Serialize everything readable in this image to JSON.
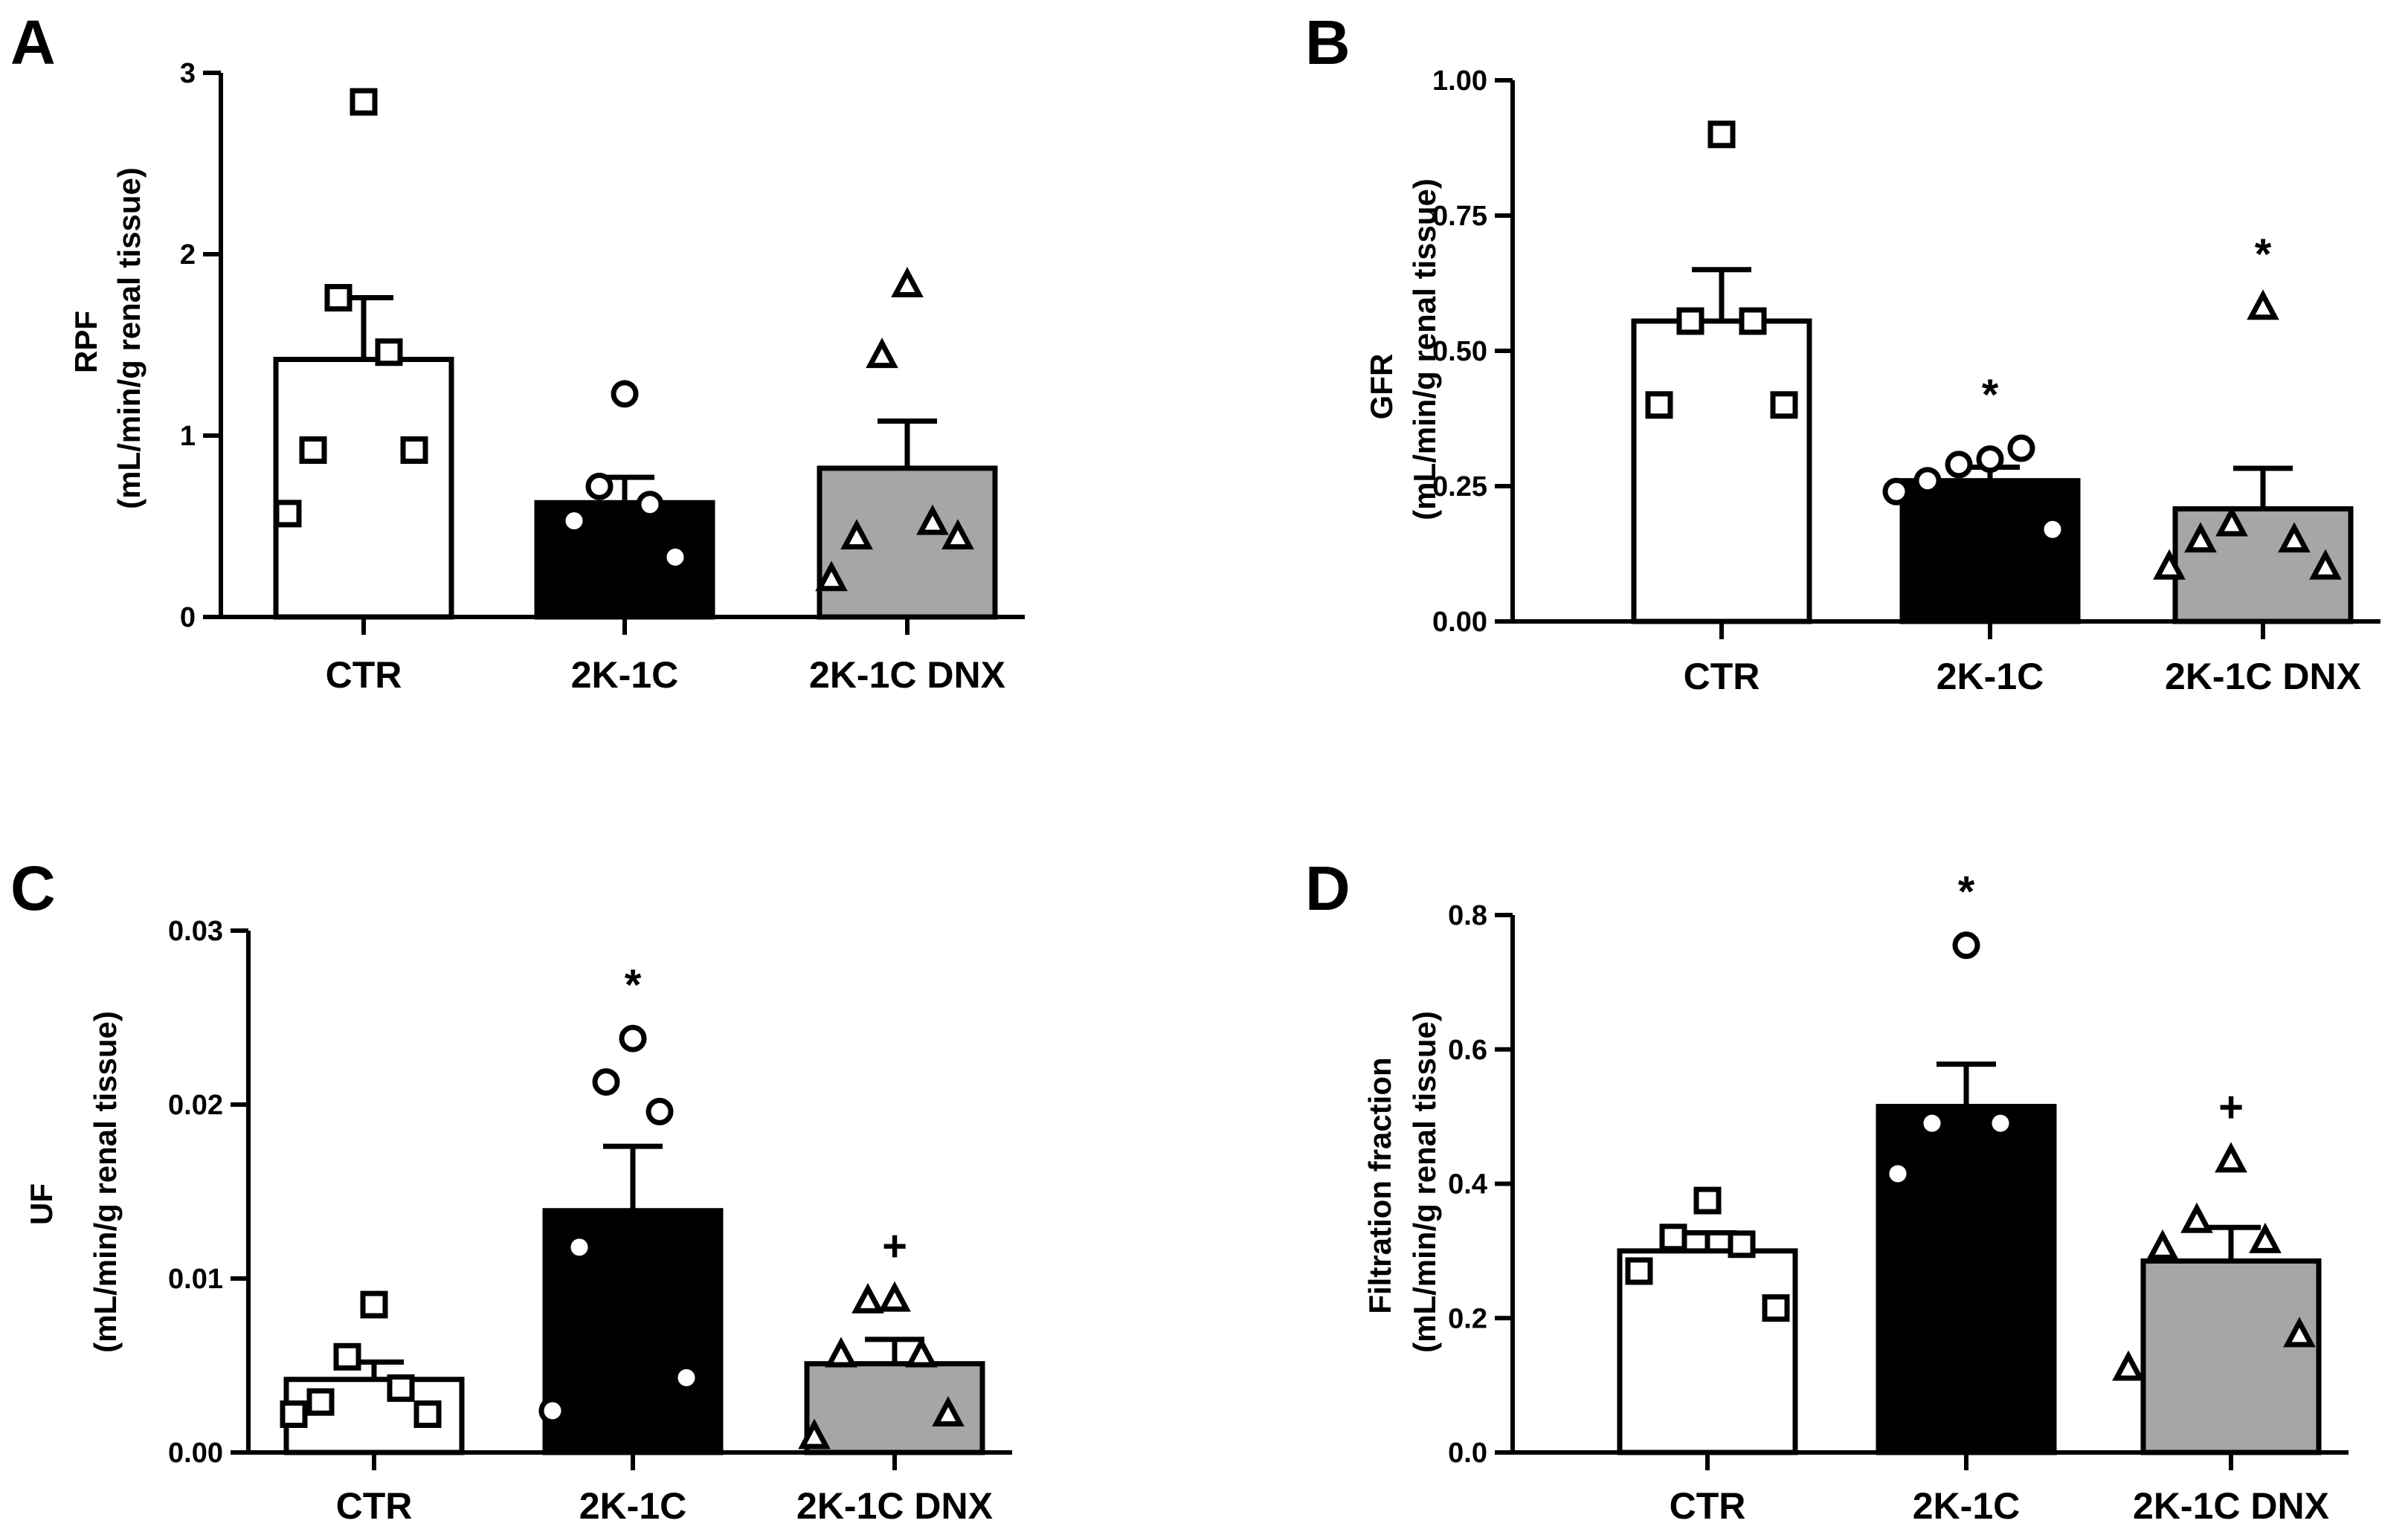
{
  "chart_data": [
    {
      "type": "bar",
      "panel": "A",
      "categories": [
        "CTR",
        "2K-1C",
        "2K-1C DNX"
      ],
      "ylabel": [
        "RPF",
        "(mL/min/g renal tissue)"
      ],
      "ylim": [
        0,
        3
      ],
      "yticks": [
        0,
        1,
        2,
        3
      ],
      "ytick_labels": [
        "0",
        "1",
        "2",
        "3"
      ],
      "means": [
        1.42,
        0.63,
        0.82
      ],
      "sem": [
        0.34,
        0.14,
        0.26
      ],
      "fills": [
        "#ffffff",
        "#000000",
        "#a6a6a6"
      ],
      "markers": [
        "square",
        "circle",
        "triangle"
      ],
      "points": [
        [
          2.84,
          1.76,
          1.46,
          0.92,
          0.92,
          0.57
        ],
        [
          1.23,
          0.72,
          0.62,
          0.53,
          0.33
        ],
        [
          1.83,
          1.44,
          0.52,
          0.44,
          0.44,
          0.21
        ]
      ],
      "annotations": [
        "",
        "",
        ""
      ]
    },
    {
      "type": "bar",
      "panel": "B",
      "categories": [
        "CTR",
        "2K-1C",
        "2K-1C DNX"
      ],
      "ylabel": [
        "GFR",
        "(mL/min/g renal tissue)"
      ],
      "ylim": [
        0,
        1
      ],
      "yticks": [
        0,
        0.25,
        0.5,
        0.75,
        1
      ],
      "ytick_labels": [
        "0.00",
        "0.25",
        "0.50",
        "0.75",
        "1.00"
      ],
      "means": [
        0.555,
        0.26,
        0.208
      ],
      "sem": [
        0.095,
        0.025,
        0.075
      ],
      "fills": [
        "#ffffff",
        "#000000",
        "#a6a6a6"
      ],
      "markers": [
        "square",
        "circle",
        "triangle"
      ],
      "points": [
        [
          0.9,
          0.555,
          0.555,
          0.4,
          0.4
        ],
        [
          0.3,
          0.29,
          0.32,
          0.26,
          0.17,
          0.24
        ],
        [
          0.58,
          0.18,
          0.15,
          0.15,
          0.1,
          0.1
        ]
      ],
      "annotations": [
        "",
        "*",
        "*"
      ]
    },
    {
      "type": "bar",
      "panel": "C",
      "categories": [
        "CTR",
        "2K-1C",
        "2K-1C DNX"
      ],
      "ylabel": [
        "UF",
        "(mL/min/g renal tissue)"
      ],
      "ylim": [
        0,
        0.03
      ],
      "yticks": [
        0,
        0.01,
        0.02,
        0.03
      ],
      "ytick_labels": [
        "0.00",
        "0.01",
        "0.02",
        "0.03"
      ],
      "means": [
        0.0042,
        0.0139,
        0.0051
      ],
      "sem": [
        0.001,
        0.0037,
        0.0014
      ],
      "fills": [
        "#ffffff",
        "#000000",
        "#a6a6a6"
      ],
      "markers": [
        "square",
        "circle",
        "triangle"
      ],
      "points": [
        [
          0.0085,
          0.0055,
          0.0037,
          0.0029,
          0.0022,
          0.0022
        ],
        [
          0.0238,
          0.0213,
          0.0196,
          0.0118,
          0.0043,
          0.0024
        ],
        [
          0.0088,
          0.0087,
          0.0056,
          0.0056,
          0.0022,
          0.0009
        ]
      ],
      "annotations": [
        "",
        "*",
        "+"
      ]
    },
    {
      "type": "bar",
      "panel": "D",
      "categories": [
        "CTR",
        "2K-1C",
        "2K-1C DNX"
      ],
      "ylabel": [
        "Filtration fraction",
        "(mL/min/g renal tissue)"
      ],
      "ylim": [
        0,
        0.8
      ],
      "yticks": [
        0,
        0.2,
        0.4,
        0.6,
        0.8
      ],
      "ytick_labels": [
        "0.0",
        "0.2",
        "0.4",
        "0.6",
        "0.8"
      ],
      "means": [
        0.3,
        0.515,
        0.285
      ],
      "sem": [
        0.027,
        0.063,
        0.05
      ],
      "fills": [
        "#ffffff",
        "#000000",
        "#a6a6a6"
      ],
      "markers": [
        "square",
        "circle",
        "triangle"
      ],
      "points": [
        [
          0.375,
          0.32,
          0.31,
          0.27,
          0.215
        ],
        [
          0.755,
          0.49,
          0.49,
          0.415
        ],
        [
          0.435,
          0.345,
          0.315,
          0.305,
          0.175,
          0.125
        ]
      ],
      "annotations": [
        "",
        "*",
        "+"
      ]
    }
  ]
}
